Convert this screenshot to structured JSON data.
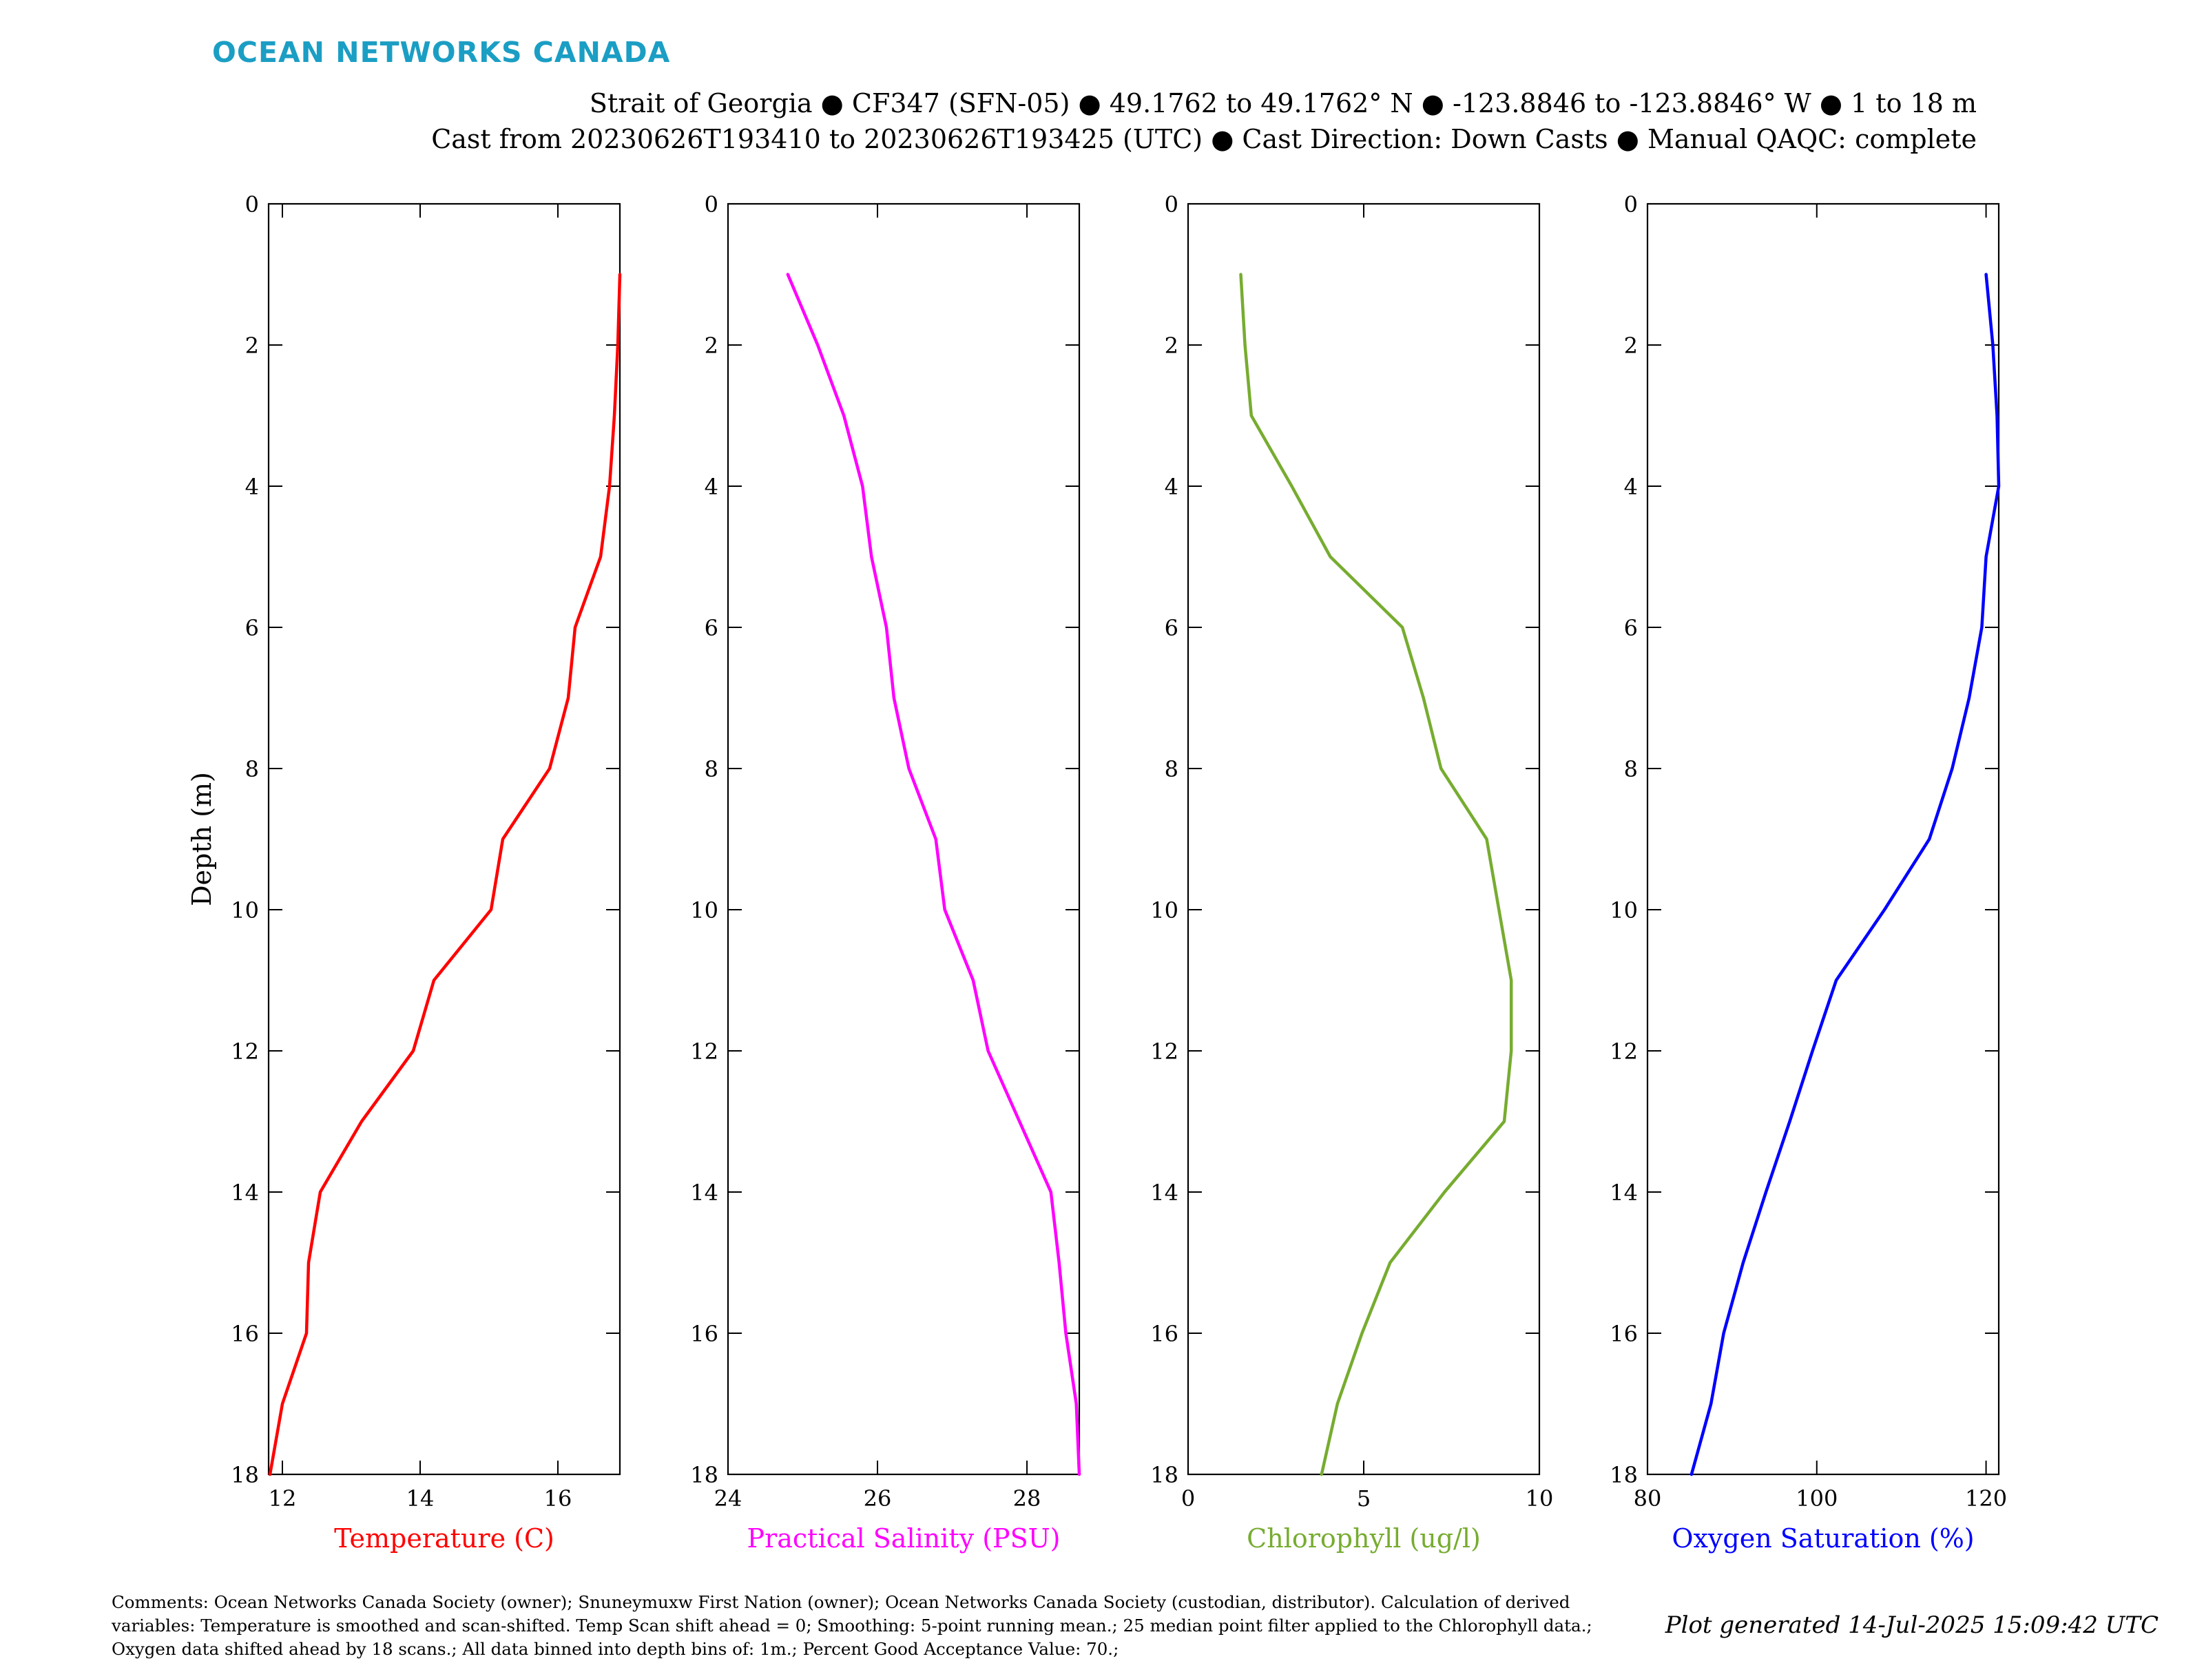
{
  "header": {
    "brand": "OCEAN NETWORKS CANADA",
    "line1": "Strait of Georgia ● CF347 (SFN-05) ● 49.1762 to 49.1762° N ● -123.8846 to -123.8846° W ● 1 to 18 m",
    "line2": "Cast from 20230626T193410 to 20230626T193425 (UTC) ● Cast Direction: Down Casts ● Manual QAQC: complete"
  },
  "footer": {
    "comments": "Comments: Ocean Networks Canada Society (owner); Snuneymuxw First Nation (owner); Ocean Networks Canada Society (custodian, distributor). Calculation of derived variables: Temperature is smoothed and scan-shifted. Temp Scan shift ahead = 0; Smoothing: 5-point running mean.; 25 median point filter applied to the Chlorophyll data.; Oxygen data shifted ahead by 18 scans.; All data binned into depth bins of: 1m.; Percent Good Acceptance Value: 70.;",
    "generated": "Plot generated 14-Jul-2025 15:09:42 UTC"
  },
  "chart_data": [
    {
      "type": "line",
      "xlabel": "Temperature (C)",
      "ylabel": "Depth (m)",
      "color": "#ff0000",
      "xlim": [
        11.8,
        16.9
      ],
      "ylim": [
        0,
        18
      ],
      "y_inverted": true,
      "xticks": [
        12,
        14,
        16
      ],
      "yticks": [
        0,
        2,
        4,
        6,
        8,
        10,
        12,
        14,
        16,
        18
      ],
      "x": [
        16.9,
        16.87,
        16.82,
        16.75,
        16.62,
        16.25,
        16.15,
        15.88,
        15.2,
        15.03,
        14.2,
        13.9,
        13.15,
        12.55,
        12.38,
        12.35,
        12.0,
        11.82
      ],
      "y": [
        1,
        2,
        3,
        4,
        5,
        6,
        7,
        8,
        9,
        10,
        11,
        12,
        13,
        14,
        15,
        16,
        17,
        18
      ]
    },
    {
      "type": "line",
      "xlabel": "Practical Salinity (PSU)",
      "ylabel": "",
      "color": "#ff00ff",
      "xlim": [
        24,
        28.7
      ],
      "ylim": [
        0,
        18
      ],
      "y_inverted": true,
      "xticks": [
        24,
        26,
        28
      ],
      "yticks": [
        0,
        2,
        4,
        6,
        8,
        10,
        12,
        14,
        16,
        18
      ],
      "x": [
        24.8,
        25.2,
        25.55,
        25.8,
        25.92,
        26.12,
        26.22,
        26.42,
        26.78,
        26.9,
        27.28,
        27.48,
        27.9,
        28.32,
        28.43,
        28.52,
        28.66,
        28.7
      ],
      "y": [
        1,
        2,
        3,
        4,
        5,
        6,
        7,
        8,
        9,
        10,
        11,
        12,
        13,
        14,
        15,
        16,
        17,
        18
      ]
    },
    {
      "type": "line",
      "xlabel": "Chlorophyll (ug/l)",
      "ylabel": "",
      "color": "#77ac30",
      "xlim": [
        0,
        10
      ],
      "ylim": [
        0,
        18
      ],
      "y_inverted": true,
      "xticks": [
        0,
        5,
        10
      ],
      "yticks": [
        0,
        2,
        4,
        6,
        8,
        10,
        12,
        14,
        16,
        18
      ],
      "x": [
        1.5,
        1.62,
        1.8,
        2.95,
        4.05,
        6.1,
        6.7,
        7.2,
        8.5,
        8.85,
        9.2,
        9.2,
        9.0,
        7.3,
        5.75,
        4.95,
        4.25,
        3.8
      ],
      "y": [
        1,
        2,
        3,
        4,
        5,
        6,
        7,
        8,
        9,
        10,
        11,
        12,
        13,
        14,
        15,
        16,
        17,
        18
      ]
    },
    {
      "type": "line",
      "xlabel": "Oxygen Saturation (%)",
      "ylabel": "",
      "color": "#0000ff",
      "xlim": [
        80,
        121.5
      ],
      "ylim": [
        0,
        18
      ],
      "y_inverted": true,
      "xticks": [
        80,
        100,
        120
      ],
      "yticks": [
        0,
        2,
        4,
        6,
        8,
        10,
        12,
        14,
        16,
        18
      ],
      "x": [
        120.0,
        120.8,
        121.3,
        121.5,
        120.0,
        119.5,
        118.0,
        116.0,
        113.3,
        108.0,
        102.3,
        99.5,
        96.8,
        94.0,
        91.3,
        89.0,
        87.5,
        85.2
      ],
      "y": [
        1,
        2,
        3,
        4,
        5,
        6,
        7,
        8,
        9,
        10,
        11,
        12,
        13,
        14,
        15,
        16,
        17,
        18
      ]
    }
  ]
}
